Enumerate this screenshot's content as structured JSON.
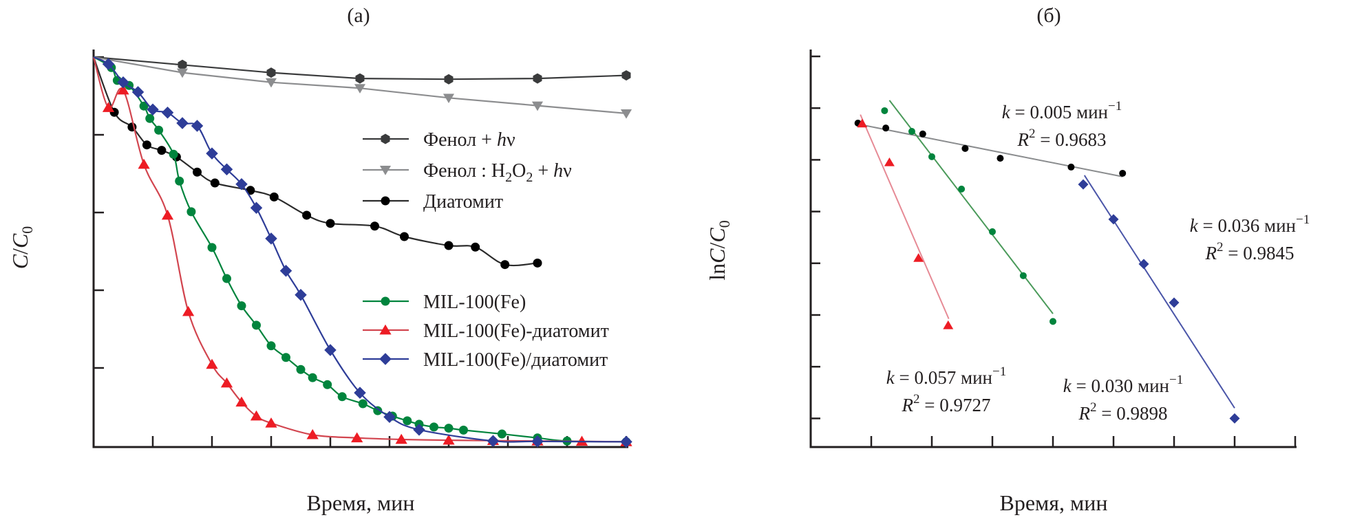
{
  "chart_data": [
    {
      "id": "a",
      "type": "line",
      "title": "(a)",
      "xlabel": "Время, мин",
      "ylabel": "C/C0",
      "xlim": [
        0,
        180
      ],
      "ylim": [
        0,
        1.0
      ],
      "xticks": [
        "0",
        "20",
        "40",
        "60",
        "80",
        "100",
        "120",
        "140",
        "160",
        "180"
      ],
      "yticks": [
        "0.2",
        "0.4",
        "0.6",
        "0.8",
        "1.0"
      ],
      "grid": false,
      "legend_placement": "center-right",
      "series": [
        {
          "name": "Фенол + hν",
          "legend": {
            "main": "Фенол + ",
            "italic": "h",
            "tail": "ν"
          },
          "color": "#3a3b3c",
          "marker": "hexagon",
          "x": [
            0,
            30,
            60,
            90,
            120,
            150,
            180
          ],
          "y": [
            1.0,
            0.98,
            0.96,
            0.945,
            0.943,
            0.945,
            0.953
          ]
        },
        {
          "name": "Фенол : H2O2 + hν",
          "legend": {
            "main": "Фенол : H",
            "sub1": "2",
            "mid": "O",
            "sub2": "2",
            "plus": " + ",
            "italic": "h",
            "tail": "ν"
          },
          "color": "#8c8d8f",
          "marker": "triangle-down",
          "x": [
            0,
            30,
            60,
            90,
            120,
            150,
            180
          ],
          "y": [
            1.0,
            0.96,
            0.935,
            0.92,
            0.895,
            0.875,
            0.855
          ]
        },
        {
          "name": "Диатомит",
          "legend": {
            "main": "Диатомит"
          },
          "color": "#000000",
          "line_color": "#2b2b2b",
          "marker": "circle",
          "x": [
            0,
            7,
            13,
            18,
            23,
            28,
            35,
            41,
            53,
            61,
            72,
            80,
            95,
            105,
            120,
            129,
            139,
            150
          ],
          "y": [
            1.0,
            0.858,
            0.82,
            0.774,
            0.76,
            0.743,
            0.704,
            0.676,
            0.657,
            0.64,
            0.593,
            0.572,
            0.565,
            0.538,
            0.515,
            0.511,
            0.466,
            0.47
          ]
        },
        {
          "name": "MIL-100(Fe)",
          "legend": {
            "main": "MIL-100(Fe)"
          },
          "color": "#00843d",
          "marker": "circle",
          "x": [
            0,
            6,
            8,
            12,
            17,
            19,
            22,
            27,
            29,
            33,
            40,
            45,
            50,
            55,
            60,
            65,
            70,
            74,
            79,
            84,
            91,
            96,
            101,
            106,
            110,
            115,
            120,
            125,
            138,
            150,
            160,
            180
          ],
          "y": [
            1.0,
            0.973,
            0.94,
            0.927,
            0.874,
            0.842,
            0.812,
            0.75,
            0.681,
            0.602,
            0.51,
            0.43,
            0.36,
            0.31,
            0.257,
            0.227,
            0.196,
            0.175,
            0.157,
            0.126,
            0.108,
            0.09,
            0.076,
            0.064,
            0.055,
            0.048,
            0.045,
            0.04,
            0.03,
            0.02,
            0.012,
            0.01
          ]
        },
        {
          "name": "MIL-100(Fe)-диатомит",
          "legend": {
            "main": "MIL-100(Fe)-диатомит"
          },
          "color": "#ed1c24",
          "line_color": "#d2454f",
          "marker": "triangle-up",
          "x": [
            0,
            5,
            10,
            17,
            25,
            32,
            40,
            45,
            50,
            55,
            60,
            74,
            89,
            104,
            120,
            135,
            150,
            165,
            180
          ],
          "y": [
            1.0,
            0.87,
            0.915,
            0.724,
            0.593,
            0.345,
            0.209,
            0.161,
            0.112,
            0.076,
            0.058,
            0.028,
            0.02,
            0.016,
            0.014,
            0.013,
            0.012,
            0.011,
            0.01
          ]
        },
        {
          "name": "MIL-100(Fe)/диатомит",
          "legend": {
            "main": "MIL-100(Fe)/диатомит"
          },
          "color": "#2e3d98",
          "marker": "diamond",
          "x": [
            0,
            5,
            10,
            15,
            20,
            25,
            30,
            35,
            40,
            45,
            50,
            55,
            60,
            65,
            70,
            80,
            90,
            100,
            110,
            135,
            150,
            180
          ],
          "y": [
            1.0,
            0.982,
            0.935,
            0.91,
            0.865,
            0.857,
            0.83,
            0.823,
            0.752,
            0.711,
            0.673,
            0.612,
            0.533,
            0.45,
            0.388,
            0.246,
            0.136,
            0.074,
            0.041,
            0.012,
            0.011,
            0.01
          ]
        }
      ]
    },
    {
      "id": "b",
      "type": "scatter",
      "title": "(б)",
      "xlabel": "Время, мин",
      "ylabel": "lnC/C0",
      "xlim": [
        10,
        90
      ],
      "ylim": [
        -1.5,
        0
      ],
      "xticks": [
        "10",
        "20",
        "30",
        "40",
        "50",
        "60",
        "70",
        "80",
        "90"
      ],
      "yticks": [
        "0",
        "−0.2",
        "−0.4",
        "−0.6",
        "−0.8",
        "−1.0",
        "−1.2",
        "−1.4"
      ],
      "grid": false,
      "series": [
        {
          "name": "Диатомит",
          "color": "#000000",
          "fit_color": "#8a8c8e",
          "marker": "circle",
          "x": [
            17.8,
            22.4,
            28.5,
            35.5,
            41.3,
            53,
            61.5
          ],
          "y": [
            -0.258,
            -0.277,
            -0.3,
            -0.356,
            -0.394,
            -0.428,
            -0.452
          ],
          "fit": {
            "x": [
              18.5,
              61.5
            ],
            "y": [
              -0.265,
              -0.465
            ]
          },
          "annotation": {
            "name": "Диатомит",
            "k": "0.005",
            "r2": "0.9683"
          }
        },
        {
          "name": "MIL-100(Fe)",
          "color": "#00843d",
          "fit_color": "#4a9a5a",
          "marker": "circle",
          "x": [
            22.2,
            26.7,
            30,
            34.9,
            40,
            45.1,
            50
          ],
          "y": [
            -0.21,
            -0.29,
            -0.388,
            -0.513,
            -0.678,
            -0.848,
            -1.025
          ],
          "fit": {
            "x": [
              23,
              50
            ],
            "y": [
              -0.17,
              -0.995
            ]
          },
          "annotation": {
            "name": "MIL-100(Fe)",
            "k": "0.030",
            "r2": "0.9898"
          }
        },
        {
          "name": "MIL-100(Fe)-диатомит",
          "color": "#ed1c24",
          "fit_color": "#e68a95",
          "marker": "triangle-up",
          "x": [
            18.5,
            23,
            27.8,
            32.7
          ],
          "y": [
            -0.26,
            -0.41,
            -0.78,
            -1.04
          ],
          "fit": {
            "x": [
              18.2,
              32.8
            ],
            "y": [
              -0.225,
              -1.015
            ]
          },
          "annotation": {
            "name": "MIL-100(Fe)-диатомит",
            "k": "0.057",
            "r2": "0.9727"
          }
        },
        {
          "name": "MIL-100(Fe)/диатомит",
          "color": "#2e3d98",
          "fit_color": "#4a55a8",
          "marker": "diamond",
          "x": [
            55,
            60,
            65,
            70,
            80
          ],
          "y": [
            -0.495,
            -0.63,
            -0.803,
            -0.952,
            -1.4
          ],
          "fit": {
            "x": [
              55.2,
              80
            ],
            "y": [
              -0.46,
              -1.36
            ]
          },
          "annotation": {
            "name": "MIL-100(Fe)/диатомит",
            "k": "0.036",
            "r2": "0.9845"
          }
        }
      ],
      "unit_label": "мин",
      "unit_exp": "−1",
      "k_symbol": "k",
      "r_symbol": "R",
      "r_exp": "2",
      "eq": " = "
    }
  ]
}
